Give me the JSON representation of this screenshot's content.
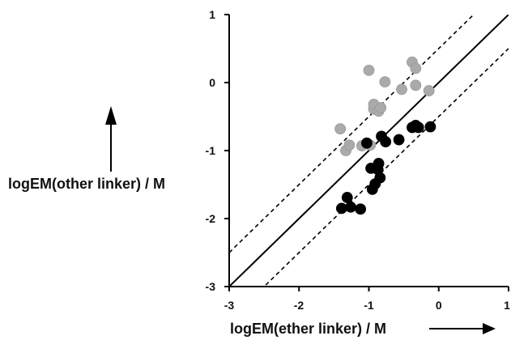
{
  "chart_data": {
    "type": "scatter",
    "title": "",
    "xlabel": "logEM(ether linker) / M",
    "ylabel": "logEM(other linker) / M",
    "xlim": [
      -3,
      1
    ],
    "ylim": [
      -3,
      1
    ],
    "xticks": [
      -3,
      -2,
      -1,
      0,
      1
    ],
    "yticks": [
      -3,
      -2,
      -1,
      0,
      1
    ],
    "x_tick_labels": [
      "-3",
      "-2",
      "-1",
      "0",
      "1"
    ],
    "y_tick_labels": [
      "-3",
      "-2",
      "-1",
      "0",
      "1"
    ],
    "grid": false,
    "legend": false,
    "reference_lines": [
      {
        "style": "solid",
        "slope": 1,
        "intercept": 0
      },
      {
        "style": "dashed",
        "slope": 1,
        "intercept": 0.5
      },
      {
        "style": "dashed",
        "slope": 1,
        "intercept": -0.5
      }
    ],
    "series": [
      {
        "color": "#aaaaaa",
        "points": [
          [
            -1.41,
            -0.68
          ],
          [
            -1.33,
            -1.0
          ],
          [
            -1.28,
            -0.92
          ],
          [
            -1.1,
            -0.93
          ],
          [
            -1.0,
            0.18
          ],
          [
            -0.98,
            -0.92
          ],
          [
            -0.93,
            -0.39
          ],
          [
            -0.93,
            -0.32
          ],
          [
            -0.86,
            -0.42
          ],
          [
            -0.83,
            -0.37
          ],
          [
            -0.77,
            0.01
          ],
          [
            -0.53,
            -0.1
          ],
          [
            -0.38,
            0.3
          ],
          [
            -0.33,
            0.21
          ],
          [
            -0.33,
            -0.04
          ],
          [
            -0.14,
            -0.12
          ]
        ]
      },
      {
        "color": "#000000",
        "points": [
          [
            -1.39,
            -1.85
          ],
          [
            -1.31,
            -1.69
          ],
          [
            -1.26,
            -1.83
          ],
          [
            -1.12,
            -1.86
          ],
          [
            -1.03,
            -0.89
          ],
          [
            -0.97,
            -1.26
          ],
          [
            -0.95,
            -1.57
          ],
          [
            -0.91,
            -1.49
          ],
          [
            -0.87,
            -1.28
          ],
          [
            -0.86,
            -1.19
          ],
          [
            -0.84,
            -1.4
          ],
          [
            -0.82,
            -0.79
          ],
          [
            -0.76,
            -0.87
          ],
          [
            -0.57,
            -0.84
          ],
          [
            -0.38,
            -0.66
          ],
          [
            -0.33,
            -0.63
          ],
          [
            -0.29,
            -0.66
          ],
          [
            -0.12,
            -0.65
          ]
        ]
      }
    ]
  }
}
